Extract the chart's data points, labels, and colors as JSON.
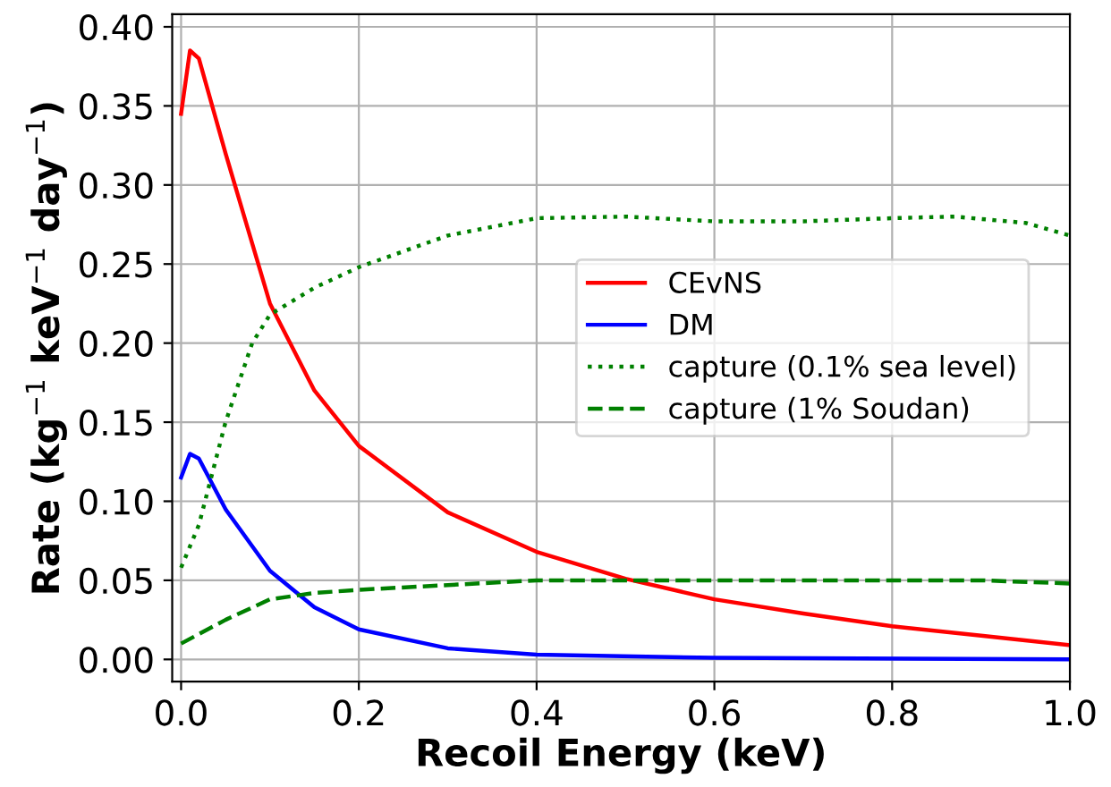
{
  "chart_data": {
    "type": "line",
    "xlabel": "Recoil Energy (keV)",
    "ylabel": "Rate (kg$^{−1}$ keV$^{−1}$ day$^{−1}$)",
    "xlim": [
      -0.01,
      1.0
    ],
    "ylim": [
      -0.014,
      0.408
    ],
    "xticks": [
      {
        "value": 0.0,
        "label": "0.0"
      },
      0.2,
      0.4,
      0.6,
      0.8,
      {
        "value": 1.0,
        "label": "1.0"
      }
    ],
    "yticks": [
      {
        "value": 0,
        "label": "0.00"
      },
      0.05,
      {
        "value": 0.1,
        "label": "0.10"
      },
      0.15,
      {
        "value": 0.2,
        "label": "0.20"
      },
      0.25,
      {
        "value": 0.3,
        "label": "0.30"
      },
      0.35,
      {
        "value": 0.4,
        "label": "0.40"
      }
    ],
    "grid": true,
    "legend": "right",
    "marker": "none",
    "series": [
      {
        "name": "CEvNS",
        "color": "#ff0000",
        "line_style": "solid",
        "x": [
          0,
          0.01,
          0.02,
          0.05,
          0.1,
          0.15,
          0.2,
          0.3,
          0.4,
          0.5,
          0.6,
          0.7,
          0.8,
          0.9,
          1.0
        ],
        "values": [
          0.345,
          0.385,
          0.38,
          0.32,
          0.225,
          0.17,
          0.135,
          0.093,
          0.068,
          0.051,
          0.038,
          0.029,
          0.021,
          0.015,
          0.009
        ]
      },
      {
        "name": "DM",
        "color": "#0000ff",
        "line_style": "solid",
        "x": [
          0,
          0.01,
          0.02,
          0.05,
          0.1,
          0.15,
          0.2,
          0.3,
          0.4,
          0.6,
          1.0
        ],
        "values": [
          0.115,
          0.13,
          0.127,
          0.095,
          0.056,
          0.033,
          0.019,
          0.007,
          0.003,
          0.001,
          0.0
        ]
      },
      {
        "name": "capture (0.1% sea level)",
        "color": "#008000",
        "line_style": "dotted",
        "x": [
          0,
          0.02,
          0.05,
          0.08,
          0.1,
          0.15,
          0.2,
          0.3,
          0.4,
          0.5,
          0.6,
          0.7,
          0.8,
          0.87,
          0.95,
          1.0
        ],
        "values": [
          0.058,
          0.085,
          0.15,
          0.2,
          0.218,
          0.235,
          0.248,
          0.268,
          0.279,
          0.28,
          0.277,
          0.277,
          0.279,
          0.28,
          0.276,
          0.268
        ]
      },
      {
        "name": "capture (1% Soudan)",
        "color": "#008000",
        "line_style": "dashed",
        "x": [
          0,
          0.05,
          0.1,
          0.15,
          0.2,
          0.3,
          0.4,
          0.5,
          0.6,
          0.8,
          0.9,
          1.0
        ],
        "values": [
          0.01,
          0.025,
          0.038,
          0.042,
          0.044,
          0.047,
          0.05,
          0.05,
          0.05,
          0.05,
          0.05,
          0.048
        ]
      }
    ]
  }
}
